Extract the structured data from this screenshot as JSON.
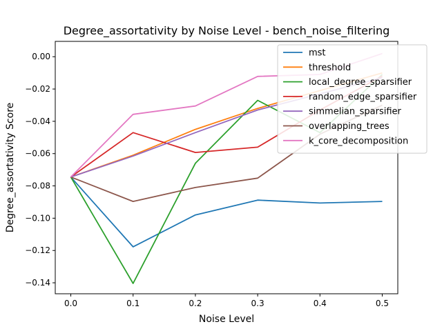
{
  "chart_data": {
    "type": "line",
    "title": "Degree_assortativity by Noise Level - bench_noise_filtering",
    "xlabel": "Noise Level",
    "ylabel": "Degree_assortativity Score",
    "x": [
      0.0,
      0.1,
      0.2,
      0.3,
      0.4,
      0.5
    ],
    "x_ticks": [
      "0.0",
      "0.1",
      "0.2",
      "0.3",
      "0.4",
      "0.5"
    ],
    "y_ticks": [
      "0.00",
      "−0.02",
      "−0.04",
      "−0.06",
      "−0.08",
      "−0.10",
      "−0.12",
      "−0.14"
    ],
    "xlim": [
      -0.025,
      0.525
    ],
    "ylim": [
      -0.1468,
      0.0095
    ],
    "grid": false,
    "legend_position": "top-right",
    "series": [
      {
        "name": "mst",
        "color": "#1f77b4",
        "values": [
          -0.0745,
          -0.1177,
          -0.098,
          -0.0888,
          -0.0906,
          -0.0896
        ]
      },
      {
        "name": "threshold",
        "color": "#ff7f0e",
        "values": [
          -0.0745,
          -0.061,
          -0.045,
          -0.032,
          -0.021,
          -0.01
        ]
      },
      {
        "name": "local_degree_sparsifier",
        "color": "#2ca02c",
        "values": [
          -0.0745,
          -0.1404,
          -0.066,
          -0.027,
          -0.047,
          -0.011
        ]
      },
      {
        "name": "random_edge_sparsifier",
        "color": "#d62728",
        "values": [
          -0.0745,
          -0.047,
          -0.0593,
          -0.056,
          -0.033,
          -0.012
        ]
      },
      {
        "name": "simmelian_sparsifier",
        "color": "#9467bd",
        "values": [
          -0.0745,
          -0.0615,
          -0.047,
          -0.033,
          -0.023,
          -0.013
        ]
      },
      {
        "name": "overlapping_trees",
        "color": "#8c564b",
        "values": [
          -0.0745,
          -0.0896,
          -0.081,
          -0.0752,
          -0.048,
          -0.03
        ]
      },
      {
        "name": "k_core_decomposition",
        "color": "#e377c2",
        "values": [
          -0.0745,
          -0.0357,
          -0.0305,
          -0.0122,
          -0.011,
          0.002
        ]
      }
    ]
  }
}
